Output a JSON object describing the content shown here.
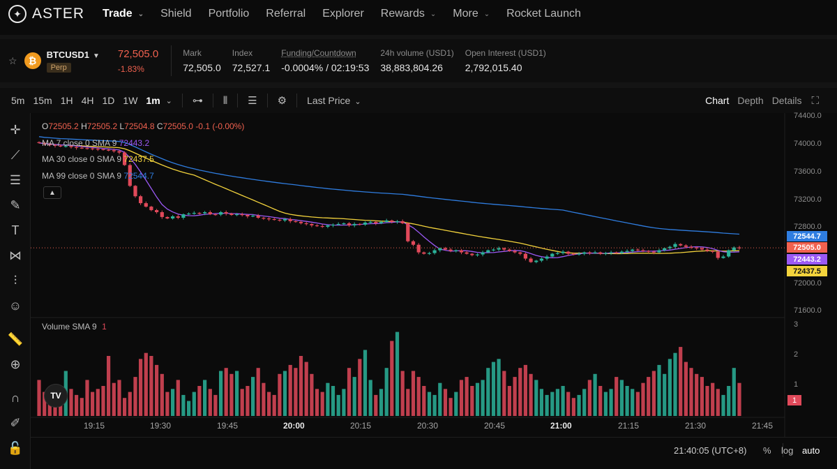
{
  "nav": {
    "brand": "ASTER",
    "items": [
      {
        "label": "Trade",
        "active": true,
        "caret": true
      },
      {
        "label": "Shield",
        "caret": false
      },
      {
        "label": "Portfolio",
        "caret": false
      },
      {
        "label": "Referral",
        "caret": false
      },
      {
        "label": "Explorer",
        "caret": false
      },
      {
        "label": "Rewards",
        "caret": true
      },
      {
        "label": "More",
        "caret": true
      },
      {
        "label": "Rocket Launch",
        "caret": false
      }
    ]
  },
  "ticker": {
    "symbol": "BTCUSD1",
    "type": "Perp",
    "last_price": "72,505.0",
    "change": "-1.83%",
    "mark_label": "Mark",
    "mark_value": "72,505.0",
    "index_label": "Index",
    "index_value": "72,527.1",
    "funding_label": "Funding/Countdown",
    "funding_value": "-0.0004% / 02:19:53",
    "volume_label": "24h volume (USD1)",
    "volume_value": "38,883,804.26",
    "oi_label": "Open Interest (USD1)",
    "oi_value": "2,792,015.40"
  },
  "toolbar": {
    "timeframes": [
      "5m",
      "15m",
      "1H",
      "4H",
      "1D",
      "1W"
    ],
    "selected": "1m",
    "price_type": "Last Price",
    "tabs": [
      "Chart",
      "Depth",
      "Details"
    ]
  },
  "legend": {
    "ohlc": {
      "o_label": "O",
      "o": "72505.2",
      "h_label": "H",
      "h": "72505.2",
      "l_label": "L",
      "l": "72504.8",
      "c_label": "C",
      "c": "72505.0",
      "change": "-0.1 (-0.00%)"
    },
    "ma7": {
      "label": "MA 7 close 0 SMA 9",
      "value": "72443.2",
      "color": "#9b59f5"
    },
    "ma30": {
      "label": "MA 30 close 0 SMA 9",
      "value": "72437.5",
      "color": "#f3d33c"
    },
    "ma99": {
      "label": "MA 99 close 0 SMA 9",
      "value": "72544.7",
      "color": "#2f7de0"
    },
    "volume": {
      "label": "Volume SMA 9",
      "value": "1"
    }
  },
  "axis": {
    "price_ticks": [
      "74400.0",
      "74000.0",
      "73600.0",
      "73200.0",
      "72800.0",
      "72000.0",
      "71600.0"
    ],
    "tags": [
      {
        "value": "72544.7",
        "color": "#2f7de0",
        "text": "#ffffff"
      },
      {
        "value": "72505.0",
        "color": "#f0614f",
        "text": "#ffffff"
      },
      {
        "value": "72443.2",
        "color": "#9b59f5",
        "text": "#ffffff"
      },
      {
        "value": "72437.5",
        "color": "#f3d33c",
        "text": "#111111"
      }
    ],
    "volume_ticks": [
      "3",
      "2",
      "1"
    ],
    "volume_tag": "1",
    "time_ticks": [
      {
        "label": "19:15",
        "bold": false
      },
      {
        "label": "19:30",
        "bold": false
      },
      {
        "label": "19:45",
        "bold": false
      },
      {
        "label": "20:00",
        "bold": true
      },
      {
        "label": "20:15",
        "bold": false
      },
      {
        "label": "20:30",
        "bold": false
      },
      {
        "label": "20:45",
        "bold": false
      },
      {
        "label": "21:00",
        "bold": true
      },
      {
        "label": "21:15",
        "bold": false
      },
      {
        "label": "21:30",
        "bold": false
      },
      {
        "label": "21:45",
        "bold": false
      }
    ]
  },
  "footer": {
    "clock": "21:40:05 (UTC+8)",
    "options": [
      "%",
      "log",
      "auto"
    ],
    "active_option": "auto"
  },
  "chart_data": {
    "type": "candlestick",
    "ylim": [
      71600,
      74400
    ],
    "closes": [
      74020,
      74000,
      73990,
      73980,
      73970,
      73975,
      73960,
      73950,
      73945,
      73940,
      73935,
      73930,
      73920,
      73915,
      73900,
      73880,
      73700,
      73400,
      73250,
      73150,
      73100,
      73050,
      73020,
      72950,
      72930,
      72960,
      72940,
      72990,
      73000,
      73010,
      73005,
      73020,
      72990,
      72985,
      73020,
      73000,
      72980,
      72990,
      72980,
      72960,
      72970,
      72940,
      72930,
      72920,
      72910,
      72900,
      72920,
      72890,
      72880,
      72860,
      72850,
      72830,
      72820,
      72810,
      72830,
      72840,
      72850,
      72860,
      72830,
      72850,
      72840,
      72870,
      72880,
      72860,
      72880,
      72900,
      72880,
      72890,
      72860,
      72600,
      72550,
      72440,
      72420,
      72430,
      72470,
      72500,
      72480,
      72460,
      72470,
      72440,
      72420,
      72400,
      72410,
      72440,
      72470,
      72480,
      72500,
      72480,
      72460,
      72440,
      72420,
      72350,
      72300,
      72320,
      72350,
      72380,
      72420,
      72430,
      72450,
      72420,
      72410,
      72420,
      72440,
      72430,
      72440,
      72420,
      72430,
      72440,
      72430,
      72450,
      72460,
      72480,
      72470,
      72460,
      72450,
      72440,
      72470,
      72500,
      72520,
      72560,
      72540,
      72520,
      72510,
      72500,
      72480,
      72460,
      72450,
      72360,
      72380,
      72470,
      72510,
      72505
    ],
    "volumes": [
      1.2,
      0.8,
      0.5,
      0.7,
      0.6,
      1.5,
      0.9,
      0.7,
      0.6,
      1.2,
      0.8,
      0.9,
      1.0,
      2.0,
      1.1,
      1.2,
      0.6,
      0.8,
      1.3,
      1.9,
      2.1,
      2.0,
      1.7,
      1.4,
      0.8,
      0.9,
      1.2,
      0.7,
      0.5,
      0.8,
      1.0,
      1.2,
      0.9,
      0.7,
      1.5,
      1.6,
      1.4,
      1.5,
      0.9,
      1.0,
      1.3,
      1.6,
      1.1,
      0.8,
      0.7,
      1.4,
      1.5,
      1.7,
      1.6,
      2.0,
      1.8,
      1.4,
      0.9,
      0.8,
      1.1,
      1.0,
      0.7,
      0.9,
      1.6,
      1.3,
      1.9,
      2.2,
      1.2,
      0.7,
      0.9,
      1.6,
      2.5,
      2.8,
      1.5,
      0.9,
      1.5,
      1.3,
      1.0,
      0.8,
      0.7,
      1.1,
      0.9,
      0.6,
      0.8,
      1.2,
      1.3,
      1.0,
      1.1,
      1.2,
      1.6,
      1.8,
      1.9,
      1.5,
      1.0,
      1.3,
      1.6,
      1.7,
      1.4,
      1.2,
      0.9,
      0.7,
      0.8,
      0.9,
      1.0,
      0.8,
      0.6,
      0.7,
      0.9,
      1.2,
      1.4,
      1.0,
      0.8,
      0.9,
      1.3,
      1.2,
      1.0,
      0.9,
      0.8,
      1.1,
      1.3,
      1.5,
      1.7,
      1.4,
      1.9,
      2.1,
      2.3,
      1.8,
      1.6,
      1.4,
      1.3,
      1.0,
      1.1,
      0.9,
      0.7,
      1.0,
      1.6,
      1.1
    ]
  }
}
